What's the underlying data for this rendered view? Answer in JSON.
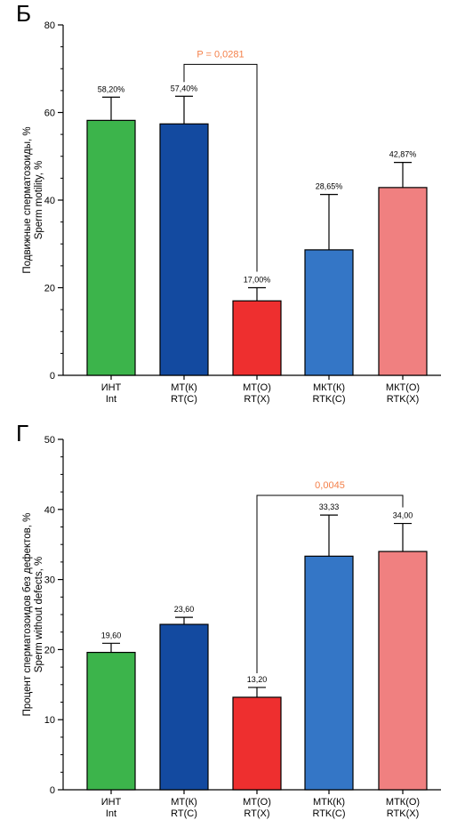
{
  "chart_data": [
    {
      "type": "bar",
      "panel_letter": "Б",
      "ylabel": [
        "Подвижные сперматозоиды, %",
        "Sperm motility, %"
      ],
      "ylim": [
        0,
        80
      ],
      "yticks": [
        0,
        20,
        40,
        60,
        80
      ],
      "categories": [
        [
          "ИНТ",
          "Int"
        ],
        [
          "МТ(К)",
          "RT(C)"
        ],
        [
          "МТ(О)",
          "RT(X)"
        ],
        [
          "МКТ(К)",
          "RTK(C)"
        ],
        [
          "МКТ(О)",
          "RTK(X)"
        ]
      ],
      "values": [
        58.2,
        57.4,
        17.0,
        28.65,
        42.87
      ],
      "error": [
        63.5,
        63.7,
        20.0,
        41.3,
        48.6
      ],
      "value_labels": [
        "58,20%",
        "57,40%",
        "17,00%",
        "28,65%",
        "42,87%"
      ],
      "colors": [
        "#3cb44b",
        "#134aa0",
        "#ee2f2f",
        "#3476c6",
        "#f08080"
      ],
      "comparison": {
        "from": 1,
        "to": 2,
        "label": "P = 0,0281",
        "y": 71
      },
      "grid": false
    },
    {
      "type": "bar",
      "panel_letter": "Г",
      "ylabel": [
        "Процент сперматозоидов без дефектов, %",
        "Sperm without defects, %"
      ],
      "ylim": [
        0,
        50
      ],
      "yticks": [
        0,
        10,
        20,
        30,
        40,
        50
      ],
      "categories": [
        [
          "ИНТ",
          "Int"
        ],
        [
          "МТ(К)",
          "RT(C)"
        ],
        [
          "МТ(О)",
          "RT(X)"
        ],
        [
          "МТК(К)",
          "RTK(C)"
        ],
        [
          "МТК(О)",
          "RTK(X)"
        ]
      ],
      "values": [
        19.6,
        23.6,
        13.2,
        33.33,
        34.0
      ],
      "error": [
        20.9,
        24.6,
        14.6,
        39.2,
        38.0
      ],
      "value_labels": [
        "19,60",
        "23,60",
        "13,20",
        "33,33",
        "34,00"
      ],
      "colors": [
        "#3cb44b",
        "#134aa0",
        "#ee2f2f",
        "#3476c6",
        "#f08080"
      ],
      "comparison": {
        "from": 2,
        "to": 4,
        "label": "0,0045",
        "y": 42
      },
      "grid": false
    }
  ]
}
